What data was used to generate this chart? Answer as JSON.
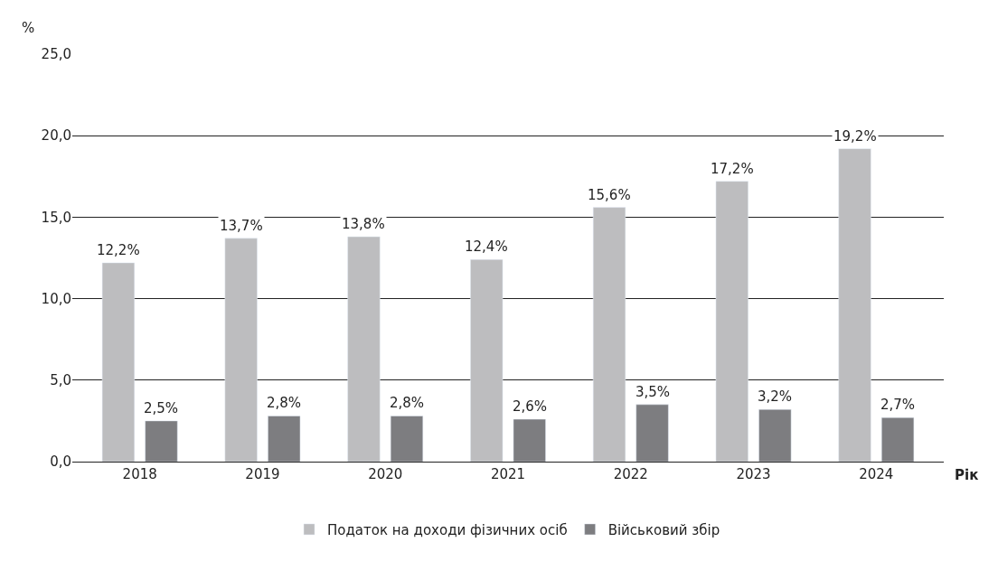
{
  "chart_data": {
    "type": "bar",
    "ylabel": "%",
    "xlabel": "Рік",
    "categories": [
      "2018",
      "2019",
      "2020",
      "2021",
      "2022",
      "2023",
      "2024"
    ],
    "series": [
      {
        "name": "Податок на доходи фізичних осіб",
        "color": "#bdbdbf",
        "values": [
          12.2,
          13.7,
          13.8,
          12.4,
          15.6,
          17.2,
          19.2
        ],
        "value_labels": [
          "12,2%",
          "13,7%",
          "13,8%",
          "12,4%",
          "15,6%",
          "17,2%",
          "19,2%"
        ]
      },
      {
        "name": "Військовий збір",
        "color": "#7d7d80",
        "values": [
          2.5,
          2.8,
          2.8,
          2.6,
          3.5,
          3.2,
          2.7
        ],
        "value_labels": [
          "2,5%",
          "2,8%",
          "2,8%",
          "2,6%",
          "3,5%",
          "3,2%",
          "2,7%"
        ]
      }
    ],
    "ylim": [
      0,
      25
    ],
    "yticks": [
      {
        "value": 0,
        "label": "0,0"
      },
      {
        "value": 5,
        "label": "5,0"
      },
      {
        "value": 10,
        "label": "10,0"
      },
      {
        "value": 15,
        "label": "15,0"
      },
      {
        "value": 20,
        "label": "20,0"
      },
      {
        "value": 25,
        "label": "25,0"
      }
    ],
    "grid": "y",
    "legend": "bottom"
  }
}
